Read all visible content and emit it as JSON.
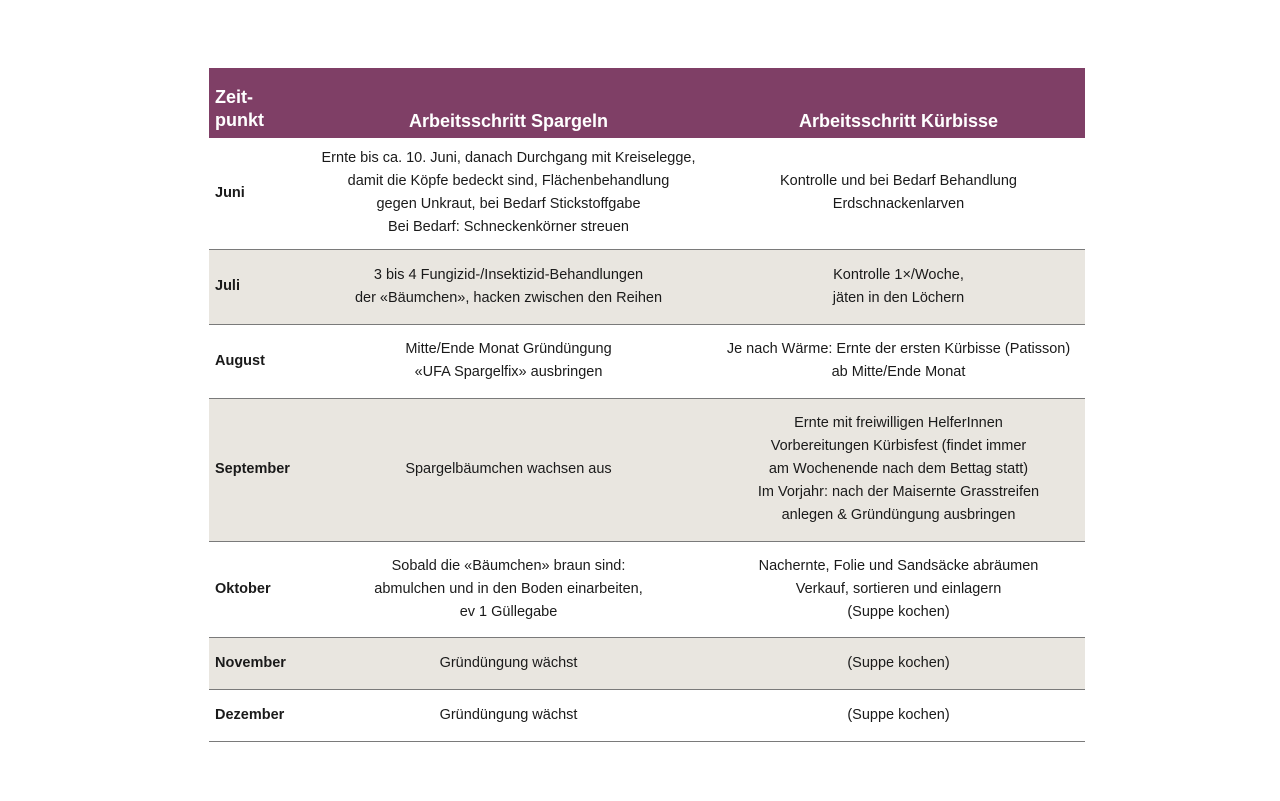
{
  "header": {
    "col1": [
      "Zeit-",
      "punkt"
    ],
    "col2": "Arbeitsschritt Spargeln",
    "col3": "Arbeitsschritt Kürbisse"
  },
  "colors": {
    "header_bg": "#7f3f66",
    "alt_row_bg": "#e9e6e0"
  },
  "rows": [
    {
      "month": "Juni",
      "spargeln": [
        "Ernte bis ca. 10. Juni, danach Durchgang mit Kreiselegge,",
        "damit die Köpfe bedeckt sind, Flächenbehandlung",
        "gegen Unkraut, bei Bedarf Stickstoffgabe",
        "Bei Bedarf: Schneckenkörner streuen"
      ],
      "kuerbisse": [
        "Kontrolle und bei Bedarf Behandlung",
        "Erdschnackenlarven"
      ]
    },
    {
      "month": "Juli",
      "spargeln": [
        "3 bis 4 Fungizid-/Insektizid-Behandlungen",
        "der «Bäumchen», hacken zwischen den Reihen"
      ],
      "kuerbisse": [
        "Kontrolle 1×/Woche,",
        "jäten in den Löchern"
      ]
    },
    {
      "month": "August",
      "spargeln": [
        "Mitte/Ende Monat Gründüngung",
        "«UFA Spargelfix» ausbringen"
      ],
      "kuerbisse": [
        "Je nach Wärme: Ernte der ersten Kürbisse (Patisson)",
        "ab Mitte/Ende Monat"
      ]
    },
    {
      "month": "September",
      "spargeln": [
        "Spargelbäumchen wachsen aus"
      ],
      "kuerbisse": [
        "Ernte mit freiwilligen HelferInnen",
        "Vorbereitungen Kürbisfest (findet immer",
        "am Wochenende nach dem Bettag statt)",
        "Im Vorjahr: nach der Maisernte Grasstreifen",
        "anlegen & Gründüngung ausbringen"
      ]
    },
    {
      "month": "Oktober",
      "spargeln": [
        "Sobald die «Bäumchen» braun sind:",
        "abmulchen und in den Boden einarbeiten,",
        "ev 1 Güllegabe"
      ],
      "kuerbisse": [
        "Nachernte, Folie und Sandsäcke abräumen",
        "Verkauf, sortieren und einlagern",
        "(Suppe kochen)"
      ]
    },
    {
      "month": "November",
      "spargeln": [
        "Gründüngung wächst"
      ],
      "kuerbisse": [
        "(Suppe kochen)"
      ]
    },
    {
      "month": "Dezember",
      "spargeln": [
        "Gründüngung wächst"
      ],
      "kuerbisse": [
        "(Suppe kochen)"
      ]
    }
  ]
}
